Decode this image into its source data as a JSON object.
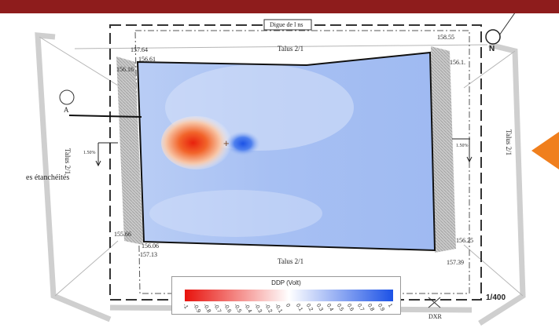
{
  "header_bar_color": "#8e1c1c",
  "map": {
    "title_top": "Digue de l ns",
    "slope_top": "Talus 2/1",
    "slope_bottom": "Talus 2/1",
    "slope_left": "Talus 2/1",
    "slope_right": "Talus 2/1",
    "section_marker": "A",
    "membrane_note": "es étanchéités",
    "slope_pct_left": "1.50%",
    "slope_pct_right": "1.50%",
    "north_symbol": "N",
    "scale": "1/400",
    "dxr_mark": "DXR",
    "elevations": {
      "top_left_outer": "157.64",
      "top_left_inner": "156.61",
      "left_upper": "156.16",
      "top_right_outer": "158.55",
      "top_right_inner": "156.1.",
      "bottom_left_outer": "155.66",
      "bottom_left_inner": "156.06",
      "bottom_left_lower": "157.13",
      "bottom_right_inner": "156.25",
      "bottom_right_outer": "157.39"
    }
  },
  "legend": {
    "title": "DDP (Volt)",
    "ticks": [
      "-1",
      "-0.9",
      "-0.8",
      "-0.7",
      "-0.6",
      "-0.5",
      "-0.4",
      "-0.3",
      "-0.2",
      "-0.1",
      "0",
      "0.1",
      "0.2",
      "0.3",
      "0.4",
      "0.5",
      "0.6",
      "0.7",
      "0.8",
      "0.9",
      "1"
    ],
    "color_low": "#e8120c",
    "color_mid": "#ffffff",
    "color_high": "#1c52e6"
  },
  "accent_arrow_color": "#f07f1d"
}
